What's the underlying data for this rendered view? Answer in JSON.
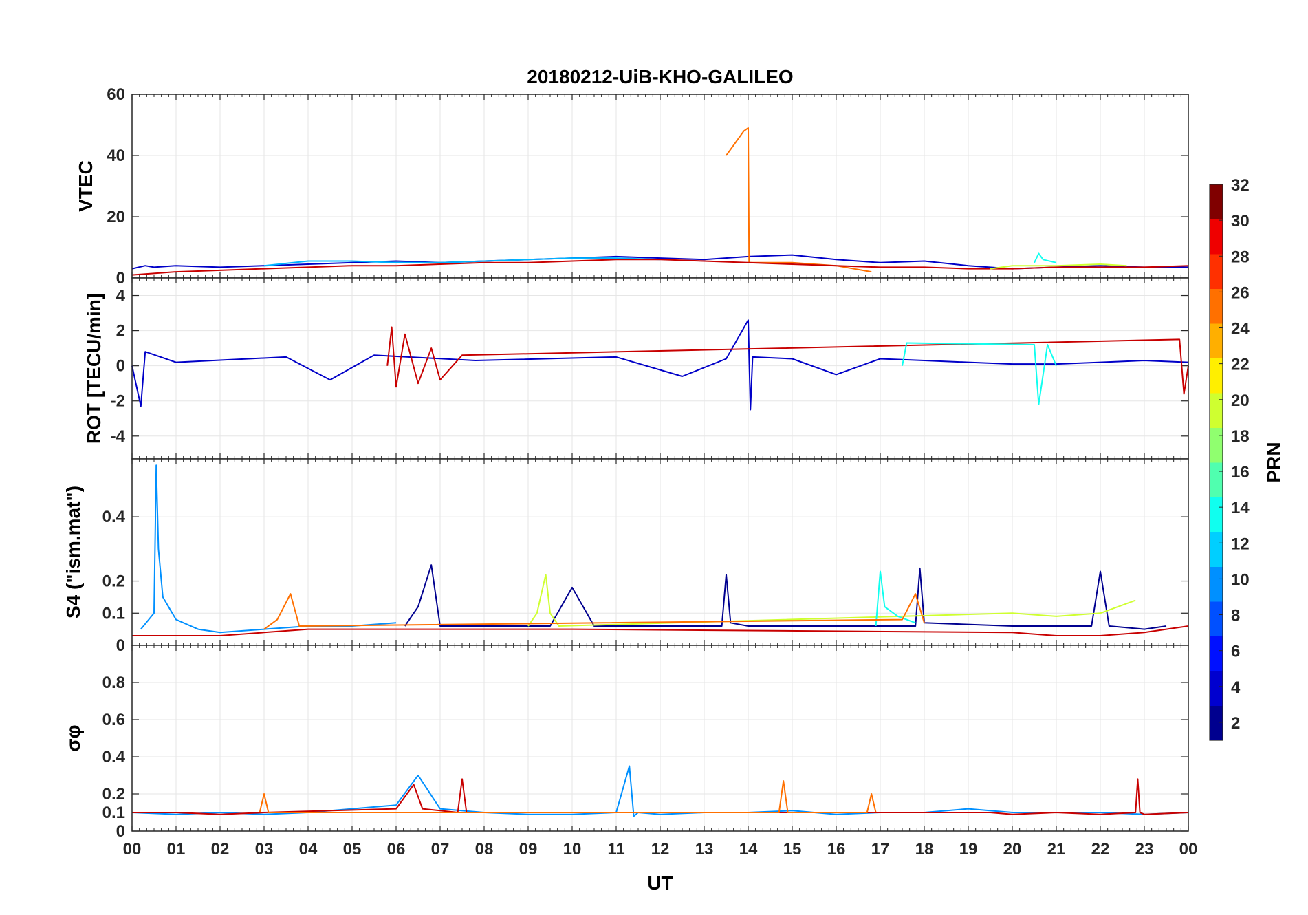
{
  "chart_data": {
    "type": "line",
    "title": "20180212-UiB-KHO-GALILEO",
    "xlabel": "UT",
    "x_ticks": [
      "00",
      "01",
      "02",
      "03",
      "04",
      "05",
      "06",
      "07",
      "08",
      "09",
      "10",
      "11",
      "12",
      "13",
      "14",
      "15",
      "16",
      "17",
      "18",
      "19",
      "20",
      "21",
      "22",
      "23",
      "00"
    ],
    "xlim": [
      0,
      24
    ],
    "grid": true,
    "colormap": "jet",
    "colorbar": {
      "label": "PRN",
      "range": [
        1,
        32
      ],
      "ticks": [
        "2",
        "4",
        "6",
        "8",
        "10",
        "12",
        "14",
        "16",
        "18",
        "20",
        "22",
        "24",
        "26",
        "28",
        "30",
        "32"
      ],
      "colors": [
        "#00008f",
        "#0000cf",
        "#0010ff",
        "#0050ff",
        "#0090ff",
        "#00cfff",
        "#10ffef",
        "#50ffaf",
        "#90ff6f",
        "#cfff30",
        "#ffef00",
        "#ffaf00",
        "#ff7000",
        "#ff3000",
        "#ef0000",
        "#800000"
      ]
    },
    "panels": [
      {
        "ylabel": "VTEC",
        "ylim": [
          0,
          60
        ],
        "y_ticks": [
          "0",
          "20",
          "40",
          "60"
        ],
        "series": [
          {
            "color": "#0000c8",
            "x": [
              0,
              0.3,
              0.5,
              1,
              2,
              3,
              4,
              5,
              6,
              7,
              8,
              9,
              10,
              11,
              12,
              13,
              14,
              15,
              16,
              17,
              18,
              19,
              20,
              21,
              22,
              23,
              24
            ],
            "values": [
              3,
              4,
              3.5,
              4,
              3.5,
              4,
              4.5,
              5,
              5.5,
              5,
              5.5,
              6,
              6.5,
              7,
              6.5,
              6,
              7,
              7.5,
              6,
              5,
              5.5,
              4,
              3,
              3.5,
              4,
              3.5,
              3.5
            ]
          },
          {
            "color": "#00b4ff",
            "x": [
              3,
              4,
              5,
              6,
              7,
              8,
              9,
              10,
              11,
              12
            ],
            "values": [
              4,
              5.5,
              5.5,
              5,
              5,
              5.5,
              6,
              6.5,
              6.5,
              6
            ]
          },
          {
            "color": "#ff7000",
            "x": [
              13.5,
              13.9,
              14.0,
              14.02,
              15,
              16,
              16.8
            ],
            "values": [
              40,
              48,
              49,
              5,
              5,
              4,
              2
            ]
          },
          {
            "color": "#c80000",
            "x": [
              0,
              1,
              2,
              3,
              4,
              5,
              6,
              7,
              8,
              9,
              10,
              11,
              12,
              13,
              14,
              15,
              16,
              17,
              18,
              19,
              20,
              21,
              22,
              23,
              24
            ],
            "values": [
              1,
              2,
              2.5,
              3,
              3.5,
              4,
              4,
              4.5,
              5,
              5,
              5.5,
              6,
              6,
              5.5,
              5,
              4.5,
              4,
              3.5,
              3.5,
              3,
              3,
              3.5,
              3.5,
              3.5,
              4
            ]
          },
          {
            "color": "#cfff30",
            "x": [
              19.5,
              20,
              21,
              22,
              22.6
            ],
            "values": [
              3,
              4,
              4,
              4.5,
              4
            ]
          },
          {
            "color": "#10ffef",
            "x": [
              20.5,
              20.6,
              20.7,
              21
            ],
            "values": [
              5,
              8,
              6,
              5
            ]
          }
        ]
      },
      {
        "ylabel": "ROT [TECU/min]",
        "ylim": [
          -5.3,
          5
        ],
        "y_ticks": [
          "-4",
          "-2",
          "0",
          "2",
          "4"
        ],
        "series": [
          {
            "color": "#0000c8",
            "x": [
              0,
              0.2,
              0.3,
              1,
              3.5,
              4.5,
              5.5,
              7.8,
              11,
              12.5,
              13.5,
              14,
              14.05,
              14.1,
              15,
              16,
              17,
              18,
              19,
              20,
              21,
              22,
              23,
              24
            ],
            "values": [
              0,
              -2.3,
              0.8,
              0.2,
              0.5,
              -0.8,
              0.6,
              0.3,
              0.5,
              -0.6,
              0.4,
              2.6,
              -2.5,
              0.5,
              0.4,
              -0.5,
              0.4,
              0.3,
              0.2,
              0.1,
              0.1,
              0.2,
              0.3,
              0.2
            ]
          },
          {
            "color": "#c80000",
            "x": [
              5.8,
              5.9,
              6.0,
              6.2,
              6.5,
              6.8,
              7.0,
              7.5,
              23.8,
              23.9,
              24
            ],
            "values": [
              0,
              2.2,
              -1.2,
              1.8,
              -1.0,
              1.0,
              -0.8,
              0.6,
              1.5,
              -1.6,
              0
            ]
          },
          {
            "color": "#10ffef",
            "x": [
              17.5,
              17.6,
              20.5,
              20.6,
              20.8,
              21
            ],
            "values": [
              0,
              1.3,
              1.2,
              -2.2,
              1.2,
              0
            ]
          }
        ]
      },
      {
        "ylabel": "S4 (\"ism.mat\")",
        "ylim": [
          0,
          0.58
        ],
        "y_ticks": [
          "0",
          "0.1",
          "0.2",
          "0.4"
        ],
        "series": [
          {
            "color": "#0090ff",
            "x": [
              0.2,
              0.5,
              0.55,
              0.6,
              0.7,
              1.0,
              1.5,
              2.0,
              3.0,
              4.0,
              5.0,
              6.0
            ],
            "values": [
              0.05,
              0.1,
              0.56,
              0.3,
              0.15,
              0.08,
              0.05,
              0.04,
              0.05,
              0.06,
              0.06,
              0.07
            ]
          },
          {
            "color": "#00008f",
            "x": [
              6.2,
              6.5,
              6.8,
              7.0,
              9.5,
              10.0,
              10.5,
              13.4,
              13.5,
              13.6,
              14.0,
              17.8,
              17.9,
              18.0,
              20.0,
              21.8,
              22.0,
              22.2,
              23.0,
              23.5
            ],
            "values": [
              0.06,
              0.12,
              0.25,
              0.06,
              0.06,
              0.18,
              0.06,
              0.06,
              0.22,
              0.07,
              0.06,
              0.06,
              0.24,
              0.07,
              0.06,
              0.06,
              0.23,
              0.06,
              0.05,
              0.06
            ]
          },
          {
            "color": "#cfff30",
            "x": [
              9.0,
              9.2,
              9.4,
              9.5,
              9.7,
              20.0,
              21.0,
              22.0,
              22.8
            ],
            "values": [
              0.06,
              0.1,
              0.22,
              0.1,
              0.06,
              0.1,
              0.09,
              0.1,
              0.14
            ]
          },
          {
            "color": "#10ffef",
            "x": [
              16.9,
              17.0,
              17.1,
              17.4,
              17.8
            ],
            "values": [
              0.06,
              0.23,
              0.12,
              0.09,
              0.07
            ]
          },
          {
            "color": "#c80000",
            "x": [
              0,
              1,
              2,
              3,
              4,
              5,
              10,
              20,
              21,
              22,
              23,
              24
            ],
            "values": [
              0.03,
              0.03,
              0.03,
              0.04,
              0.05,
              0.05,
              0.05,
              0.04,
              0.03,
              0.03,
              0.04,
              0.06
            ]
          },
          {
            "color": "#ff7000",
            "x": [
              3.0,
              3.3,
              3.6,
              3.8,
              17.5,
              17.8,
              18.0
            ],
            "values": [
              0.05,
              0.08,
              0.16,
              0.06,
              0.08,
              0.16,
              0.07
            ]
          }
        ]
      },
      {
        "ylabel": "σφ",
        "ylim": [
          0,
          1
        ],
        "y_ticks": [
          "0",
          "0.1",
          "0.2",
          "0.4",
          "0.6",
          "0.8"
        ],
        "series": [
          {
            "color": "#0090ff",
            "x": [
              0,
              1,
              2,
              3,
              4,
              5,
              6,
              6.5,
              7,
              8,
              9,
              10,
              11,
              11.3,
              11.4,
              11.5,
              12,
              13,
              14,
              15,
              16,
              17,
              18,
              19,
              20,
              21,
              22,
              23,
              24
            ],
            "values": [
              0.1,
              0.09,
              0.1,
              0.09,
              0.1,
              0.12,
              0.14,
              0.3,
              0.12,
              0.1,
              0.09,
              0.09,
              0.1,
              0.35,
              0.08,
              0.1,
              0.09,
              0.1,
              0.1,
              0.11,
              0.09,
              0.1,
              0.1,
              0.12,
              0.1,
              0.1,
              0.1,
              0.09,
              0.1
            ]
          },
          {
            "color": "#c80000",
            "x": [
              0,
              1,
              2,
              3,
              6,
              6.4,
              6.6,
              7.4,
              7.5,
              7.6,
              8,
              19.5,
              20,
              21,
              22,
              22.8,
              22.85,
              22.9,
              23,
              24
            ],
            "values": [
              0.1,
              0.1,
              0.09,
              0.1,
              0.12,
              0.25,
              0.12,
              0.1,
              0.28,
              0.1,
              0.1,
              0.1,
              0.09,
              0.1,
              0.09,
              0.1,
              0.28,
              0.1,
              0.09,
              0.1
            ]
          },
          {
            "color": "#ff7000",
            "x": [
              2.9,
              3.0,
              3.1,
              14.7,
              14.8,
              14.9,
              16.7,
              16.8,
              16.9
            ],
            "values": [
              0.1,
              0.2,
              0.1,
              0.1,
              0.27,
              0.1,
              0.1,
              0.2,
              0.1
            ]
          }
        ]
      }
    ]
  }
}
